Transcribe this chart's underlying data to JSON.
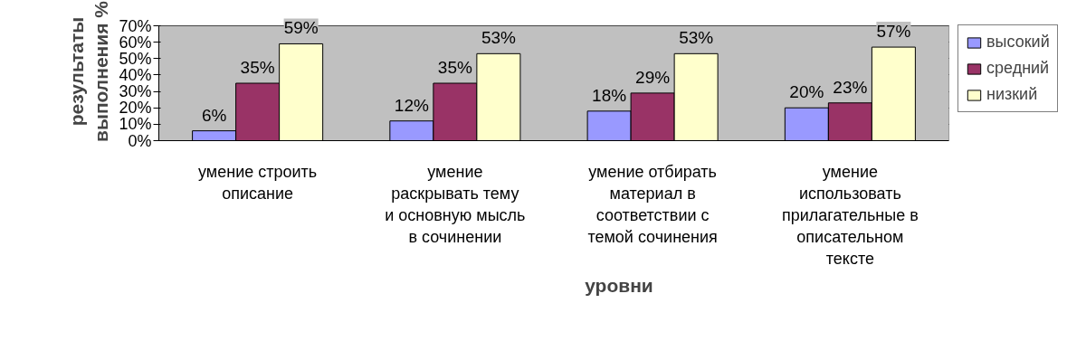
{
  "chart_data": {
    "type": "bar",
    "xlabel": "уровни",
    "ylabel": "результаты выполнения %",
    "categories": [
      "умение строить описание",
      "умение раскрывать тему и основную мысль в сочинении",
      "умение отбирать материал в соответствии с темой сочинения",
      "умение использовать прилагательные в описательном тексте"
    ],
    "series": [
      {
        "name": "высокий",
        "color": "#9999ff",
        "values": [
          6,
          12,
          18,
          20
        ],
        "value_labels": [
          "6%",
          "12%",
          "18%",
          "20%"
        ]
      },
      {
        "name": "средний",
        "color": "#993366",
        "values": [
          35,
          35,
          29,
          23
        ],
        "value_labels": [
          "35%",
          "35%",
          "29%",
          "23%"
        ]
      },
      {
        "name": "низкий",
        "color": "#ffffcc",
        "values": [
          59,
          53,
          53,
          57
        ],
        "value_labels": [
          "59%",
          "53%",
          "53%",
          "57%"
        ]
      }
    ],
    "ylim": [
      0,
      70
    ],
    "yticks": [
      {
        "value": 0,
        "label": "0%"
      },
      {
        "value": 10,
        "label": "10%"
      },
      {
        "value": 20,
        "label": "20%"
      },
      {
        "value": 30,
        "label": "30%"
      },
      {
        "value": 40,
        "label": "40%"
      },
      {
        "value": 50,
        "label": "50%"
      },
      {
        "value": 60,
        "label": "60%"
      },
      {
        "value": 70,
        "label": "70%"
      }
    ],
    "grid": "y",
    "legend": "right"
  }
}
